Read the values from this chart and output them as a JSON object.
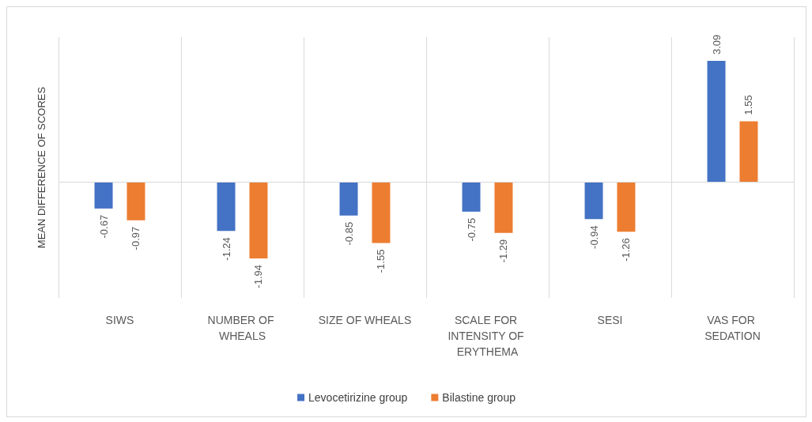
{
  "chart_data": {
    "type": "bar",
    "ylabel": "MEAN DIFFERENCE OF SCORES",
    "categories": [
      "SIWS",
      "NUMBER OF WHEALS",
      "SIZE OF WHEALS",
      "SCALE FOR INTENSITY OF ERYTHEMA",
      "SESI",
      "VAS FOR SEDATION"
    ],
    "series": [
      {
        "name": "Levocetirizine group",
        "color": "#4472c4",
        "values": [
          -0.67,
          -1.24,
          -0.85,
          -0.75,
          -0.94,
          3.09
        ]
      },
      {
        "name": "Bilastine group",
        "color": "#ed7d31",
        "values": [
          -0.97,
          -1.94,
          -1.55,
          -1.29,
          -1.26,
          1.55
        ]
      }
    ],
    "data_labels": true,
    "grid": "x",
    "legend": "bottom"
  }
}
